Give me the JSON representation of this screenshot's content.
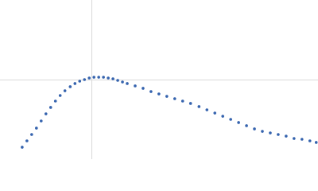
{
  "chart_data": {
    "type": "scatter",
    "color": "#3563ae",
    "x": [
      0.42,
      0.51,
      0.6,
      0.69,
      0.78,
      0.87,
      0.96,
      1.05,
      1.14,
      1.23,
      1.33,
      1.42,
      1.51,
      1.6,
      1.69,
      1.78,
      1.87,
      1.96,
      2.05,
      2.14,
      2.23,
      2.32,
      2.41,
      2.56,
      2.71,
      2.86,
      3.01,
      3.16,
      3.31,
      3.46,
      3.61,
      3.77,
      3.92,
      4.07,
      4.22,
      4.37,
      4.52,
      4.67,
      4.82,
      4.97,
      5.12,
      5.27,
      5.42,
      5.57,
      5.72,
      5.87,
      5.99
    ],
    "values": [
      0.166,
      0.254,
      0.342,
      0.431,
      0.53,
      0.629,
      0.718,
      0.806,
      0.883,
      0.949,
      1.005,
      1.049,
      1.082,
      1.104,
      1.126,
      1.137,
      1.137,
      1.137,
      1.126,
      1.115,
      1.093,
      1.071,
      1.049,
      1.016,
      0.983,
      0.938,
      0.905,
      0.872,
      0.839,
      0.806,
      0.773,
      0.729,
      0.684,
      0.64,
      0.596,
      0.552,
      0.508,
      0.464,
      0.42,
      0.386,
      0.364,
      0.342,
      0.32,
      0.287,
      0.276,
      0.254,
      0.232
    ],
    "xlim": [
      0,
      6.024
    ],
    "ylim": [
      0,
      2.208
    ],
    "xticks": [
      1.732
    ],
    "yticks": [
      1.104
    ],
    "grid": true
  }
}
